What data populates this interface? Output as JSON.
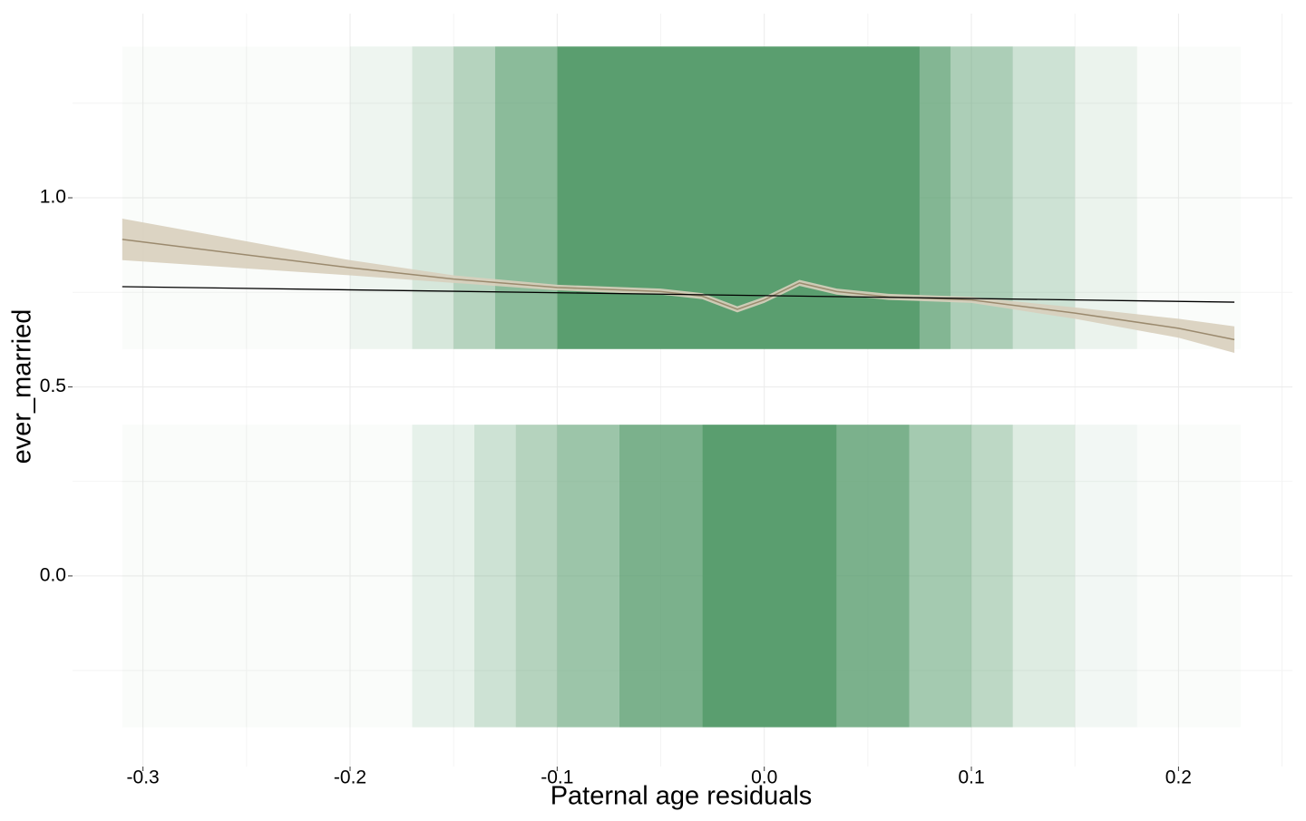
{
  "chart_data": {
    "type": "jitter",
    "x_label": "Paternal age residuals",
    "y_label": "ever_married",
    "xlim": [
      -0.334,
      0.255
    ],
    "ylim": [
      -0.504,
      1.487
    ],
    "xticks": [
      -0.3,
      -0.2,
      -0.1,
      {
        "value": 0,
        "label": "0.0"
      },
      0.1,
      0.2
    ],
    "yticks": [
      {
        "value": 0,
        "label": "0.0"
      },
      0.5,
      {
        "value": 1,
        "label": "1.0"
      }
    ],
    "xminor": [
      -0.25,
      -0.15,
      -0.05,
      0.05,
      0.15,
      0.25
    ],
    "yminor": [
      -0.25,
      0.25,
      0.75,
      1.25
    ],
    "grid": true,
    "point_color": "#5a9e6f",
    "clouds": [
      {
        "yrange": [
          0.6,
          1.4
        ],
        "bins": [
          -0.31,
          -0.2,
          -0.17,
          -0.15,
          -0.13,
          -0.1,
          0.075,
          0.09,
          0.12,
          0.15,
          0.18,
          0.23
        ],
        "density": [
          0.03,
          0.1,
          0.25,
          0.45,
          0.7,
          1,
          0.75,
          0.5,
          0.3,
          0.12,
          0.03
        ]
      },
      {
        "yrange": [
          -0.4,
          0.4
        ],
        "bins": [
          -0.31,
          -0.17,
          -0.14,
          -0.12,
          -0.1,
          -0.07,
          -0.03,
          0.035,
          0.07,
          0.1,
          0.12,
          0.15,
          0.18,
          0.23
        ],
        "density": [
          0.03,
          0.15,
          0.3,
          0.45,
          0.6,
          0.8,
          1,
          0.8,
          0.55,
          0.4,
          0.2,
          0.08,
          0.03
        ]
      }
    ],
    "smooth": {
      "color": "#9b8a6e",
      "fill": "#d8cfbd",
      "x": [
        -0.31,
        -0.2,
        -0.15,
        -0.1,
        -0.05,
        -0.03,
        -0.013,
        0,
        0.017,
        0.035,
        0.06,
        0.1,
        0.15,
        0.2,
        0.227
      ],
      "y": [
        0.89,
        0.815,
        0.785,
        0.763,
        0.752,
        0.74,
        0.705,
        0.73,
        0.775,
        0.752,
        0.738,
        0.73,
        0.695,
        0.655,
        0.625
      ],
      "lower": [
        0.835,
        0.795,
        0.775,
        0.755,
        0.744,
        0.732,
        0.697,
        0.722,
        0.767,
        0.744,
        0.73,
        0.722,
        0.68,
        0.63,
        0.59
      ],
      "upper": [
        0.945,
        0.835,
        0.795,
        0.77,
        0.76,
        0.748,
        0.713,
        0.738,
        0.783,
        0.76,
        0.746,
        0.738,
        0.71,
        0.68,
        0.66
      ]
    },
    "linear": {
      "color": "#000000",
      "x": [
        -0.31,
        0.227
      ],
      "y": [
        0.765,
        0.724
      ]
    }
  }
}
